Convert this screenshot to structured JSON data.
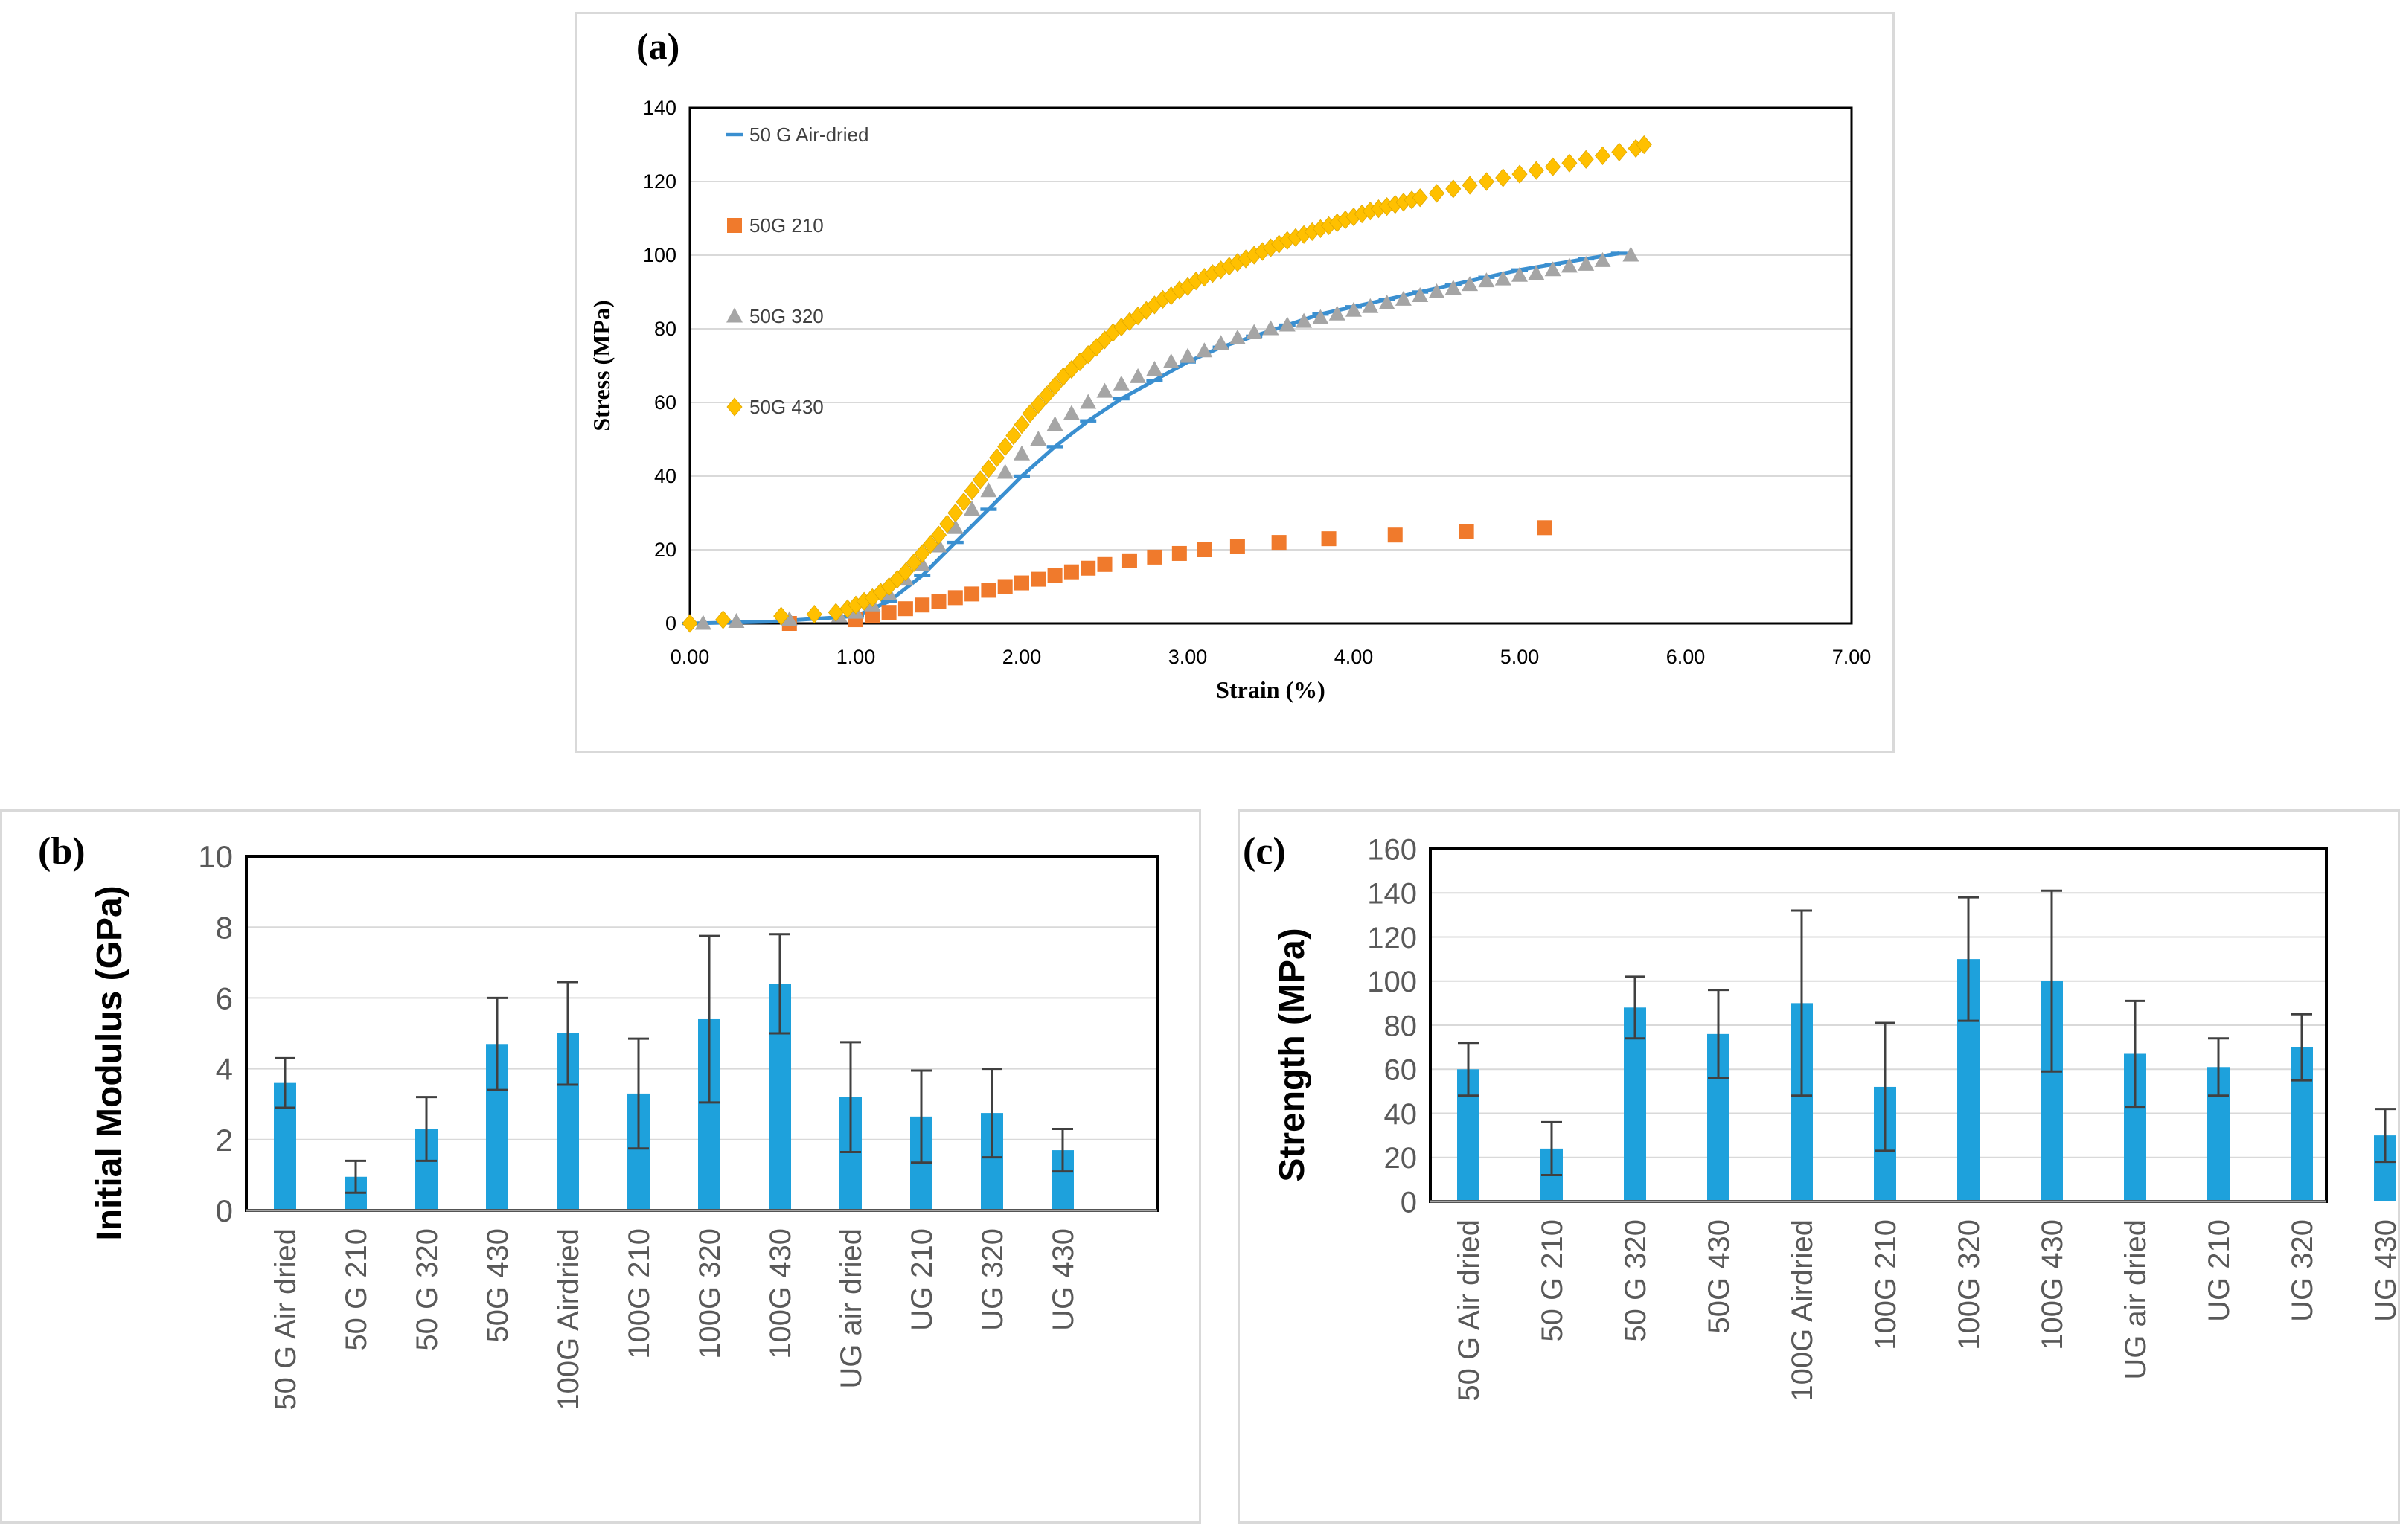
{
  "chart_data": [
    {
      "type": "scatter",
      "panel_label": "(a)",
      "xlabel": "Strain (%)",
      "ylabel": "Stress (MPa)",
      "xlim": [
        0,
        7
      ],
      "ylim": [
        0,
        140
      ],
      "x_ticks": [
        "0.00",
        "1.00",
        "2.00",
        "3.00",
        "4.00",
        "5.00",
        "6.00",
        "7.00"
      ],
      "y_ticks": [
        "0",
        "20",
        "40",
        "60",
        "80",
        "100",
        "120",
        "140"
      ],
      "grid": "horizontal",
      "legend_position": "top-left",
      "series": [
        {
          "name": "50 G Air-dried",
          "marker": "dash",
          "color": "#3a8fd0",
          "x": [
            0.0,
            0.5,
            1.0,
            1.2,
            1.4,
            1.6,
            1.8,
            2.0,
            2.2,
            2.4,
            2.6,
            2.8,
            3.0,
            3.2,
            3.4,
            3.6,
            3.8,
            4.0,
            4.2,
            4.4,
            4.6,
            4.8,
            5.0,
            5.2,
            5.4,
            5.6
          ],
          "y": [
            0,
            0.5,
            2,
            6,
            13,
            22,
            31,
            40,
            48,
            55,
            61,
            66,
            71,
            75,
            78,
            81,
            84,
            86,
            88,
            90,
            92,
            94,
            96,
            97.5,
            99,
            100.5
          ]
        },
        {
          "name": "50G 210",
          "marker": "square",
          "color": "#f07a2c",
          "x": [
            0.6,
            1.0,
            1.1,
            1.2,
            1.3,
            1.4,
            1.5,
            1.6,
            1.7,
            1.8,
            1.9,
            2.0,
            2.1,
            2.2,
            2.3,
            2.4,
            2.5,
            2.65,
            2.8,
            2.95,
            3.1,
            3.3,
            3.55,
            3.85,
            4.25,
            4.68,
            5.15
          ],
          "y": [
            0,
            1,
            2,
            3,
            4,
            5,
            6,
            7,
            8,
            9,
            10,
            11,
            12,
            13,
            14,
            15,
            16,
            17,
            18,
            19,
            20,
            21,
            22,
            23,
            24,
            25,
            26
          ]
        },
        {
          "name": "50G 320",
          "marker": "triangle",
          "color": "#a5a5a5",
          "x": [
            0.08,
            0.28,
            0.6,
            0.9,
            1.0,
            1.1,
            1.2,
            1.3,
            1.4,
            1.5,
            1.6,
            1.7,
            1.8,
            1.9,
            2.0,
            2.1,
            2.2,
            2.3,
            2.4,
            2.5,
            2.6,
            2.7,
            2.8,
            2.9,
            3.0,
            3.1,
            3.2,
            3.3,
            3.4,
            3.5,
            3.6,
            3.7,
            3.8,
            3.9,
            4.0,
            4.1,
            4.2,
            4.3,
            4.4,
            4.5,
            4.6,
            4.7,
            4.8,
            4.9,
            5.0,
            5.1,
            5.2,
            5.3,
            5.4,
            5.5,
            5.67
          ],
          "y": [
            0,
            0.5,
            1,
            2,
            3,
            5,
            8,
            12,
            16,
            21,
            26,
            31,
            36,
            41,
            46,
            50,
            54,
            57,
            60,
            63,
            65,
            67,
            69,
            71,
            72.5,
            74,
            76,
            77.5,
            79,
            80,
            81,
            82,
            83,
            84,
            85,
            86,
            87,
            88,
            89,
            90,
            91,
            92,
            93,
            93.5,
            94.5,
            95,
            96,
            97,
            97.5,
            98.5,
            100
          ]
        },
        {
          "name": "50G 430",
          "marker": "diamond",
          "color": "#ffc000",
          "x": [
            0.0,
            0.2,
            0.55,
            0.75,
            0.88,
            0.95,
            1.0,
            1.05,
            1.1,
            1.15,
            1.2,
            1.25,
            1.3,
            1.35,
            1.4,
            1.45,
            1.5,
            1.55,
            1.6,
            1.65,
            1.7,
            1.75,
            1.8,
            1.85,
            1.9,
            1.95,
            2.0,
            2.05,
            2.1,
            2.15,
            2.2,
            2.25,
            2.3,
            2.35,
            2.4,
            2.45,
            2.5,
            2.55,
            2.6,
            2.65,
            2.7,
            2.75,
            2.8,
            2.85,
            2.9,
            2.95,
            3.0,
            3.05,
            3.1,
            3.15,
            3.2,
            3.25,
            3.3,
            3.35,
            3.4,
            3.45,
            3.5,
            3.55,
            3.6,
            3.65,
            3.7,
            3.75,
            3.8,
            3.85,
            3.9,
            3.95,
            4.0,
            4.05,
            4.1,
            4.15,
            4.2,
            4.25,
            4.3,
            4.35,
            4.4,
            4.5,
            4.6,
            4.7,
            4.8,
            4.9,
            5.0,
            5.1,
            5.2,
            5.3,
            5.4,
            5.5,
            5.6,
            5.7,
            5.75
          ],
          "y": [
            0,
            1,
            2,
            2.5,
            3,
            4,
            5,
            6,
            7,
            8.5,
            10,
            12,
            14,
            16.5,
            19,
            21.5,
            24,
            27,
            30,
            33,
            36,
            39,
            42,
            45,
            48,
            51,
            54,
            57,
            59.5,
            62,
            64.5,
            67,
            69,
            71,
            73,
            75,
            77,
            79,
            80.5,
            82,
            83.5,
            85,
            86.5,
            88,
            89,
            90.5,
            91.5,
            93,
            94,
            95,
            96,
            97,
            98,
            99,
            100,
            101,
            102,
            103,
            104,
            104.8,
            105.6,
            106.4,
            107.2,
            108,
            108.8,
            109.6,
            110.4,
            111.2,
            112,
            112.6,
            113.2,
            113.8,
            114.4,
            115,
            115.6,
            116.8,
            118,
            119,
            120,
            121,
            122,
            123,
            124,
            125,
            126,
            127,
            128,
            129,
            130
          ]
        }
      ]
    },
    {
      "type": "bar",
      "panel_label": "(b)",
      "ylabel": "Initial Modulus (GPa)",
      "ylim": [
        0,
        10
      ],
      "y_ticks": [
        "0",
        "2",
        "4",
        "6",
        "8",
        "10"
      ],
      "grid": "horizontal",
      "bar_color": "#1ea1dc",
      "categories": [
        "50 G Air dried",
        "50 G 210",
        "50 G 320",
        "50G 430",
        "100G Airdried",
        "100G 210",
        "100G 320",
        "100G 430",
        "UG air dried",
        "UG 210",
        "UG 320",
        "UG 430"
      ],
      "values": [
        3.6,
        0.95,
        2.3,
        4.7,
        5.0,
        3.3,
        5.4,
        6.4,
        3.2,
        2.65,
        2.75,
        1.7
      ],
      "errors": [
        0.7,
        0.45,
        0.9,
        1.3,
        1.45,
        1.55,
        2.35,
        1.4,
        1.55,
        1.3,
        1.25,
        0.6
      ]
    },
    {
      "type": "bar",
      "panel_label": "(c)",
      "ylabel": "Strength (MPa)",
      "ylim": [
        0,
        160
      ],
      "y_ticks": [
        "0",
        "20",
        "40",
        "60",
        "80",
        "100",
        "120",
        "140",
        "160"
      ],
      "grid": "horizontal",
      "bar_color": "#1ea1dc",
      "categories": [
        "50 G Air dried",
        "50 G 210",
        "50 G 320",
        "50G 430",
        "100G Airdried",
        "100G 210",
        "100G 320",
        "100G 430",
        "UG air dried",
        "UG 210",
        "UG 320",
        "UG 430"
      ],
      "values": [
        60,
        24,
        88,
        76,
        90,
        52,
        110,
        100,
        67,
        61,
        70,
        30
      ],
      "errors": [
        12,
        12,
        14,
        20,
        42,
        29,
        28,
        41,
        24,
        13,
        15,
        12
      ]
    }
  ]
}
